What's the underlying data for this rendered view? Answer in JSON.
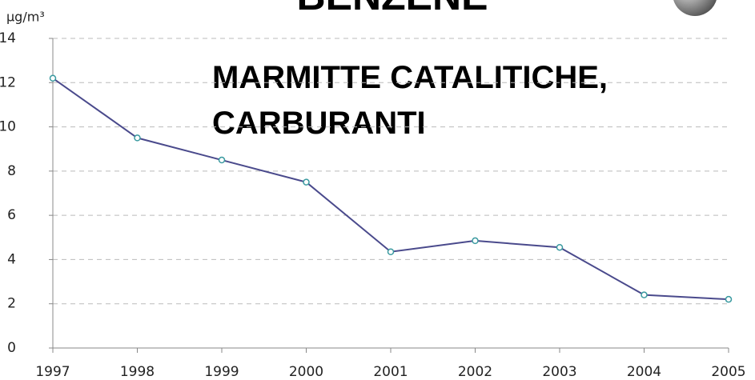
{
  "chart_data": {
    "type": "line",
    "title": "BENZENE",
    "ylabel": "µg/m³",
    "annotations": [
      "MARMITTE CATALITICHE,",
      "CARBURANTI"
    ],
    "x": [
      1997,
      1998,
      1999,
      2000,
      2001,
      2002,
      2003,
      2004,
      2005
    ],
    "series": [
      {
        "name": "Benzene",
        "color": "#4a4a8c",
        "values": [
          12.2,
          9.5,
          8.5,
          7.5,
          4.35,
          4.85,
          4.55,
          2.4,
          2.2
        ]
      }
    ],
    "xlim": [
      1997,
      2005
    ],
    "xticks": [
      1997,
      1998,
      1999,
      2000,
      2001,
      2002,
      2003,
      2004,
      2005
    ],
    "ylim": [
      0,
      14
    ],
    "yticks": [
      0,
      2,
      4,
      6,
      8,
      10,
      12,
      14
    ],
    "grid": true,
    "legend": false
  }
}
